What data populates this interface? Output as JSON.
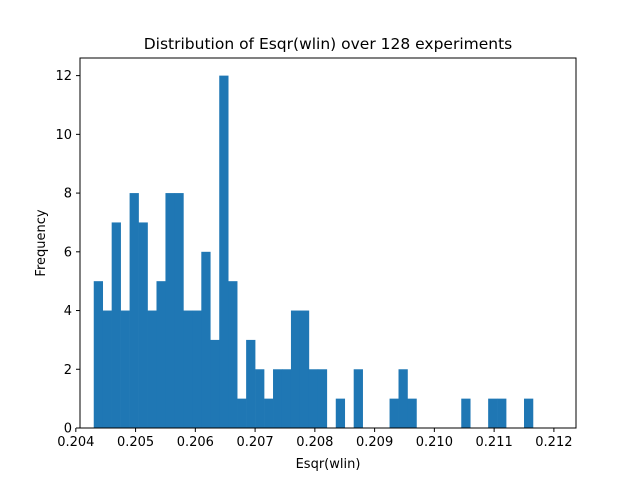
{
  "chart_data": {
    "type": "bar",
    "title": "Distribution of Esqr(wlin) over 128 experiments",
    "xlabel": "Esqr(wlin)",
    "ylabel": "Frequency",
    "xlim": [
      0.20407,
      0.21237
    ],
    "ylim": [
      0,
      12.6
    ],
    "bin_start": 0.2043,
    "bin_width": 0.00015,
    "x_ticks": [
      0.204,
      0.205,
      0.206,
      0.207,
      0.208,
      0.209,
      0.21,
      0.211,
      0.212
    ],
    "x_tick_labels": [
      "0.204",
      "0.205",
      "0.206",
      "0.207",
      "0.208",
      "0.209",
      "0.210",
      "0.211",
      "0.212"
    ],
    "y_ticks": [
      0,
      2,
      4,
      6,
      8,
      10,
      12
    ],
    "y_tick_labels": [
      "0",
      "2",
      "4",
      "6",
      "8",
      "10",
      "12"
    ],
    "values": [
      5,
      4,
      7,
      4,
      8,
      7,
      4,
      5,
      8,
      8,
      4,
      4,
      6,
      3,
      12,
      5,
      1,
      3,
      2,
      1,
      2,
      2,
      4,
      4,
      2,
      2,
      0,
      1,
      0,
      2,
      0,
      0,
      0,
      1,
      2,
      1,
      0,
      0,
      0,
      0,
      0,
      1,
      0,
      0,
      1,
      1,
      0,
      0,
      1
    ],
    "bar_color": "#1f77b4",
    "grid": false,
    "legend": "none"
  }
}
